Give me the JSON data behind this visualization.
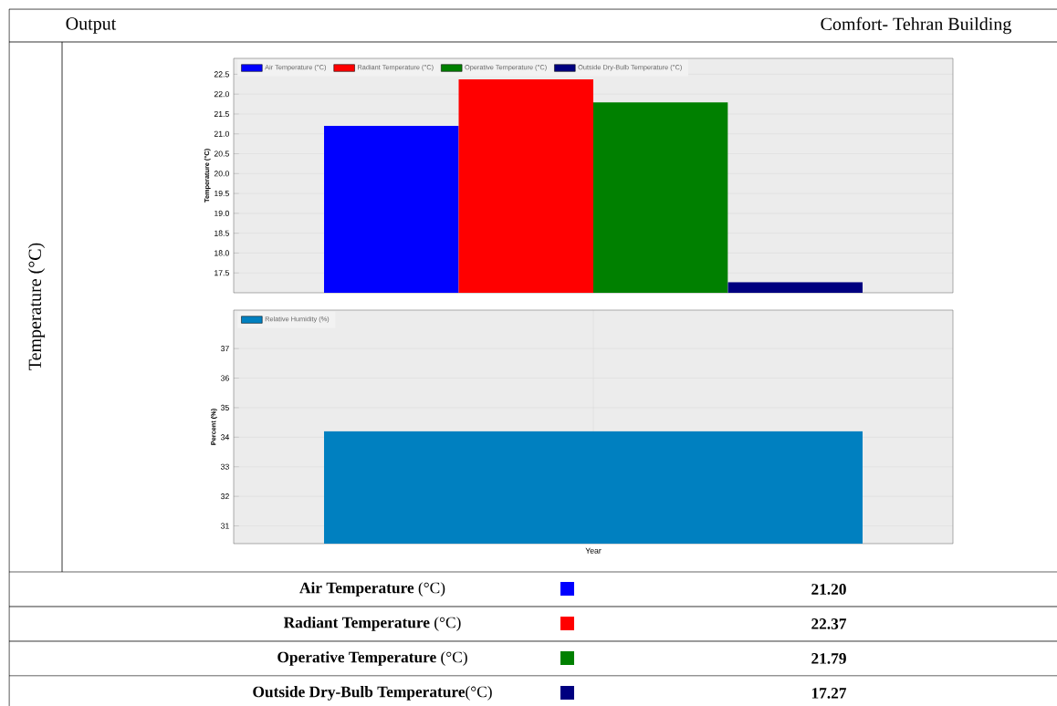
{
  "chart_data": [
    {
      "type": "bar",
      "title": "Output",
      "subtitle": "Comfort- Tehran Building",
      "ylabel": "Temperature (°C)",
      "categories": [
        null
      ],
      "tick_labels": "y",
      "grid": "y",
      "legend": "top left",
      "ylim": [
        17.0,
        22.9
      ],
      "yticks": [
        {
          "value": 17.5,
          "label": "17.5"
        },
        {
          "value": 18.0,
          "label": "18.0"
        },
        {
          "value": 18.5,
          "label": "18.5"
        },
        {
          "value": 19.0,
          "label": "19.0"
        },
        {
          "value": 19.5,
          "label": "19.5"
        },
        {
          "value": 20.0,
          "label": "20.0"
        },
        {
          "value": 20.5,
          "label": "20.5"
        },
        {
          "value": 21.0,
          "label": "21.0"
        },
        {
          "value": 21.5,
          "label": "21.5"
        },
        {
          "value": 22.0,
          "label": "22.0"
        },
        {
          "value": 22.5,
          "label": "22.5"
        }
      ],
      "series": [
        {
          "name": "Air Temperature (°C)",
          "color": "#0000ff",
          "values": [
            21.2
          ]
        },
        {
          "name": "Radiant Temperature (°C)",
          "color": "#ff0000",
          "values": [
            22.37
          ]
        },
        {
          "name": "Operative Temperature (°C)",
          "color": "#008000",
          "values": [
            21.79
          ]
        },
        {
          "name": "Outside Dry-Bulb Temperature (°C)",
          "color": "#000080",
          "values": [
            17.27
          ]
        }
      ],
      "annotations": [
        "Temperature (°C)",
        "**Air Temperature** (°C)",
        "**Radiant Temperature** (°C)",
        "**Operative Temperature** (°C)",
        "**Outside Dry-Bulb Temperature**(°C)",
        "**21.20**",
        "**22.37**",
        "**21.79**",
        "**17.27**"
      ]
    },
    {
      "type": "bar",
      "ylabel": "Percent (%)",
      "categories": [
        "Year"
      ],
      "grid": true,
      "legend": "top left",
      "ylim": [
        30.4,
        38.3
      ],
      "yticks": [
        31,
        32,
        33,
        34,
        35,
        36,
        37
      ],
      "series": [
        {
          "name": "Relative Humidity (%)",
          "color": "#0080c0",
          "values": [
            34.2
          ]
        }
      ]
    }
  ]
}
